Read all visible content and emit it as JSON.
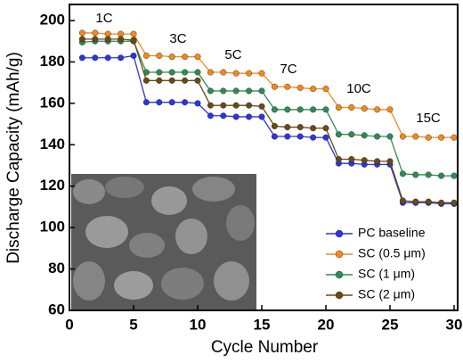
{
  "chart_data": {
    "type": "line",
    "xlabel": "Cycle Number",
    "ylabel": "Discharge Capacity (mAh/g)",
    "x": [
      1,
      2,
      3,
      4,
      5,
      6,
      7,
      8,
      9,
      10,
      11,
      12,
      13,
      14,
      15,
      16,
      17,
      18,
      19,
      20,
      21,
      22,
      23,
      24,
      25,
      26,
      27,
      28,
      29,
      30
    ],
    "series": [
      {
        "name": "PC baseline",
        "color": "#2b35e0",
        "values": [
          182,
          182,
          182,
          182,
          183,
          160.5,
          160.5,
          160.5,
          160.5,
          160,
          154,
          154,
          153.5,
          153.5,
          153.5,
          144,
          144,
          144,
          143.5,
          143.5,
          131,
          131,
          130.5,
          130.5,
          130.5,
          112,
          112,
          112,
          111.5,
          111.5
        ]
      },
      {
        "name": "SC (0.5 μm)",
        "color": "#f08a1c",
        "values": [
          194,
          194,
          193.5,
          193.5,
          193.5,
          183,
          183,
          182.5,
          182.5,
          182.5,
          175,
          175,
          174.5,
          174.5,
          174.5,
          168,
          168,
          167.5,
          167,
          167,
          158,
          158,
          157.5,
          157,
          157,
          144,
          144,
          143.5,
          143.5,
          143.5
        ]
      },
      {
        "name": "SC (1 μm)",
        "color": "#2e8b57",
        "values": [
          189.5,
          190,
          190,
          190,
          190,
          175,
          175,
          175,
          175,
          175,
          166,
          166,
          166,
          166,
          166,
          157,
          157,
          157,
          157,
          157,
          145,
          145,
          144.5,
          144,
          144,
          126,
          125.5,
          125.5,
          125,
          125
        ]
      },
      {
        "name": "SC (2 μm)",
        "color": "#6b4a12",
        "values": [
          191,
          191,
          191,
          191,
          190.5,
          171,
          171,
          171,
          171,
          171,
          159,
          159,
          159,
          159,
          158.5,
          149,
          148.5,
          148.5,
          148,
          148,
          133,
          133,
          132.5,
          132,
          132,
          113,
          112.5,
          112.5,
          112,
          112
        ]
      }
    ],
    "annotations": [
      "1C",
      "3C",
      "5C",
      "7C",
      "10C",
      "15C"
    ],
    "xlim": [
      0,
      30
    ],
    "xticks": [
      0,
      5,
      10,
      15,
      20,
      25,
      30
    ],
    "ylim": [
      60,
      200
    ],
    "yticks": [
      60,
      80,
      100,
      120,
      140,
      160,
      180,
      200
    ],
    "ylim_top_padding_note_absent": null
  }
}
